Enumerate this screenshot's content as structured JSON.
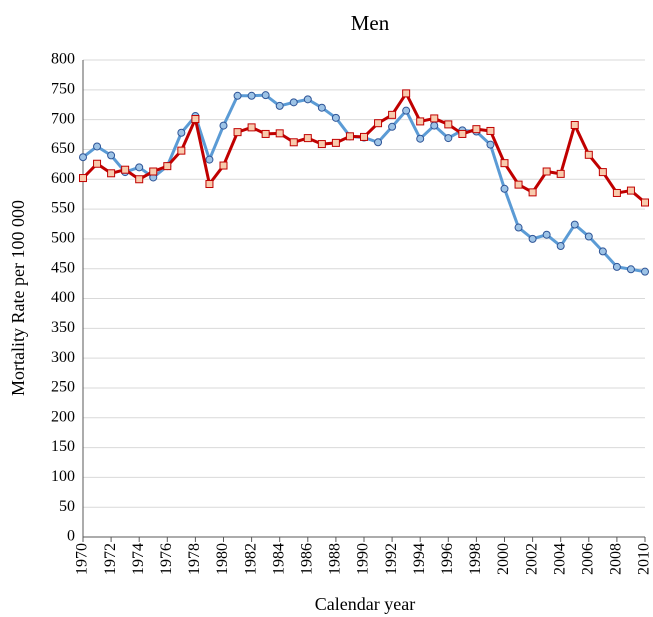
{
  "chart_data": {
    "type": "line",
    "title": "Men",
    "x_label": "Calendar year",
    "y_label": "Mortality Rate per 100 000",
    "x": [
      1970,
      1971,
      1972,
      1973,
      1974,
      1975,
      1976,
      1977,
      1978,
      1979,
      1980,
      1981,
      1982,
      1983,
      1984,
      1985,
      1986,
      1987,
      1988,
      1989,
      1990,
      1991,
      1992,
      1993,
      1994,
      1995,
      1996,
      1997,
      1998,
      1999,
      2000,
      2001,
      2002,
      2003,
      2004,
      2005,
      2006,
      2007,
      2008,
      2009,
      2010
    ],
    "xlim": [
      1970,
      2010
    ],
    "xticks": [
      1970,
      1972,
      1974,
      1976,
      1978,
      1980,
      1982,
      1984,
      1986,
      1988,
      1990,
      1992,
      1994,
      1996,
      1998,
      2000,
      2002,
      2004,
      2006,
      2008,
      2010
    ],
    "ylim": [
      0,
      800
    ],
    "yticks": [
      0,
      50,
      100,
      150,
      200,
      250,
      300,
      350,
      400,
      450,
      500,
      550,
      600,
      650,
      700,
      750,
      800
    ],
    "grid": true,
    "series": [
      {
        "color": "#5b9bd5",
        "marker": "circle",
        "values": [
          637,
          655,
          640,
          612,
          620,
          603,
          622,
          678,
          706,
          633,
          690,
          740,
          740,
          741,
          723,
          729,
          734,
          720,
          703,
          672,
          670,
          662,
          688,
          715,
          668,
          690,
          669,
          682,
          680,
          658,
          584,
          519,
          500,
          507,
          488,
          524,
          504,
          479,
          453,
          449,
          445
        ]
      },
      {
        "color": "#c00000",
        "marker": "square",
        "values": [
          602,
          626,
          610,
          616,
          600,
          613,
          622,
          648,
          701,
          592,
          623,
          679,
          687,
          676,
          677,
          662,
          669,
          659,
          661,
          672,
          671,
          694,
          708,
          744,
          697,
          702,
          692,
          676,
          684,
          681,
          627,
          591,
          578,
          613,
          609,
          691,
          641,
          612,
          577,
          581,
          561
        ]
      }
    ]
  }
}
